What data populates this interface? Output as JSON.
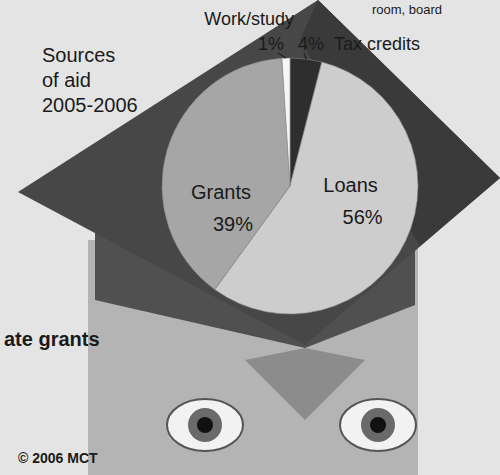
{
  "chart_data": {
    "type": "pie",
    "title": "Sources of aid 2005-2006",
    "categories": [
      "Tax credits",
      "Loans",
      "Grants",
      "Work/study"
    ],
    "values": [
      4,
      56,
      39,
      1
    ],
    "value_labels": [
      "4%",
      "56%",
      "39%",
      "1%"
    ],
    "colors": [
      "#2e2e2e",
      "#cdcdcd",
      "#a6a6a6",
      "#f6f6f6"
    ],
    "data_labels": true,
    "annotations": [
      "room, board",
      "ate grants",
      "© 2006 MCT"
    ]
  }
}
